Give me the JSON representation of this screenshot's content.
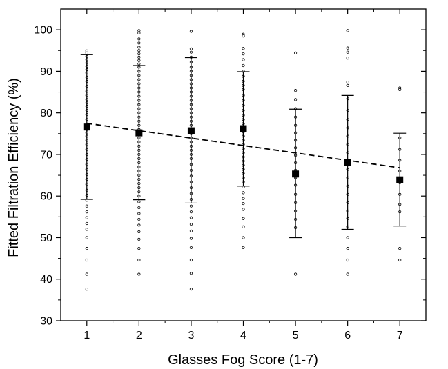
{
  "chart_data": {
    "type": "scatter",
    "xlabel": "Glasses Fog Score (1-7)",
    "ylabel": "Fitted Filtration Efficiency (%)",
    "xlim": [
      0.5,
      7.5
    ],
    "ylim": [
      30,
      105
    ],
    "xticks": [
      "1",
      "2",
      "3",
      "4",
      "5",
      "6",
      "7"
    ],
    "yticks": [
      "30",
      "40",
      "50",
      "60",
      "70",
      "80",
      "90",
      "100"
    ],
    "grid": false,
    "legend": "none",
    "means": [
      {
        "x": 1,
        "mean": 76.6,
        "lower": 59.2,
        "upper": 94.0
      },
      {
        "x": 2,
        "mean": 75.2,
        "lower": 59.1,
        "upper": 91.4
      },
      {
        "x": 3,
        "mean": 75.7,
        "lower": 58.3,
        "upper": 93.3
      },
      {
        "x": 4,
        "mean": 76.2,
        "lower": 62.4,
        "upper": 89.9
      },
      {
        "x": 5,
        "mean": 65.3,
        "lower": 50.0,
        "upper": 80.9
      },
      {
        "x": 6,
        "mean": 68.0,
        "lower": 52.0,
        "upper": 84.2
      },
      {
        "x": 7,
        "mean": 63.9,
        "lower": 52.8,
        "upper": 75.1
      }
    ],
    "trend_line": {
      "x": [
        1,
        7
      ],
      "y": [
        77.5,
        66.8
      ]
    },
    "raw_points": [
      {
        "x": 1,
        "values": [
          94.9,
          94.4,
          93.6,
          92.8,
          92.0,
          91.2,
          90.4,
          89.6,
          88.6,
          87.6,
          86.4,
          85.2,
          84.2,
          83.2,
          82.4,
          81.6,
          80.6,
          79.6,
          78.4,
          77.2,
          76.0,
          75.2,
          74.4,
          73.4,
          72.4,
          71.2,
          70.0,
          68.8,
          67.6,
          66.4,
          65.2,
          64.0,
          62.8,
          61.4,
          60.2,
          59.0,
          57.6,
          56.2,
          54.8,
          53.4,
          52.0,
          50.0,
          47.4,
          44.6,
          41.2,
          37.6
        ]
      },
      {
        "x": 2,
        "values": [
          99.8,
          99.2,
          97.8,
          96.8,
          95.8,
          95.0,
          94.2,
          93.4,
          92.6,
          91.8,
          91.0,
          90.0,
          89.0,
          88.0,
          87.0,
          86.0,
          85.0,
          84.0,
          83.0,
          82.0,
          81.0,
          80.0,
          79.0,
          78.0,
          77.0,
          76.0,
          75.0,
          74.0,
          73.0,
          72.0,
          71.0,
          70.0,
          69.0,
          68.0,
          67.0,
          66.0,
          65.0,
          64.0,
          63.0,
          62.0,
          61.0,
          60.0,
          58.6,
          57.2,
          55.8,
          54.4,
          53.0,
          51.4,
          49.6,
          47.4,
          44.6,
          41.2
        ]
      },
      {
        "x": 3,
        "values": [
          99.6,
          95.4,
          94.6,
          93.4,
          92.2,
          91.0,
          90.0,
          89.0,
          88.0,
          87.0,
          86.0,
          85.0,
          84.0,
          83.0,
          82.0,
          81.0,
          80.0,
          79.0,
          78.0,
          77.0,
          76.0,
          75.0,
          74.0,
          73.0,
          72.0,
          71.0,
          70.0,
          69.0,
          67.6,
          66.2,
          64.8,
          63.4,
          62.0,
          60.6,
          59.2,
          57.6,
          56.2,
          54.8,
          53.2,
          51.6,
          49.8,
          47.6,
          44.6,
          41.4,
          37.6
        ]
      },
      {
        "x": 4,
        "values": [
          98.9,
          98.5,
          95.5,
          94.2,
          92.8,
          91.4,
          90.0,
          88.8,
          87.6,
          86.6,
          85.6,
          84.2,
          83.0,
          81.8,
          80.6,
          79.4,
          78.4,
          77.4,
          76.4,
          75.4,
          74.4,
          73.4,
          72.4,
          71.4,
          70.4,
          69.4,
          68.4,
          67.4,
          66.4,
          65.4,
          64.4,
          63.4,
          62.2,
          60.8,
          59.4,
          58.2,
          56.8,
          54.6,
          52.6,
          50.0,
          47.6
        ]
      },
      {
        "x": 5,
        "values": [
          94.4,
          85.4,
          83.2,
          81.0,
          79.0,
          77.0,
          75.2,
          73.4,
          71.6,
          69.8,
          68.0,
          66.2,
          64.4,
          62.6,
          60.4,
          58.4,
          56.4,
          54.4,
          52.4,
          41.2
        ]
      },
      {
        "x": 6,
        "values": [
          99.8,
          95.6,
          94.6,
          93.2,
          87.4,
          86.6,
          83.4,
          80.6,
          78.4,
          76.4,
          74.4,
          72.4,
          70.4,
          68.4,
          66.4,
          64.4,
          62.4,
          60.4,
          58.4,
          56.4,
          54.6,
          52.6,
          50.0,
          47.4,
          44.6,
          41.2
        ]
      },
      {
        "x": 7,
        "values": [
          86.0,
          85.6,
          74.0,
          71.2,
          68.6,
          66.0,
          63.2,
          60.4,
          58.0,
          56.2,
          47.4,
          44.6
        ]
      }
    ]
  }
}
